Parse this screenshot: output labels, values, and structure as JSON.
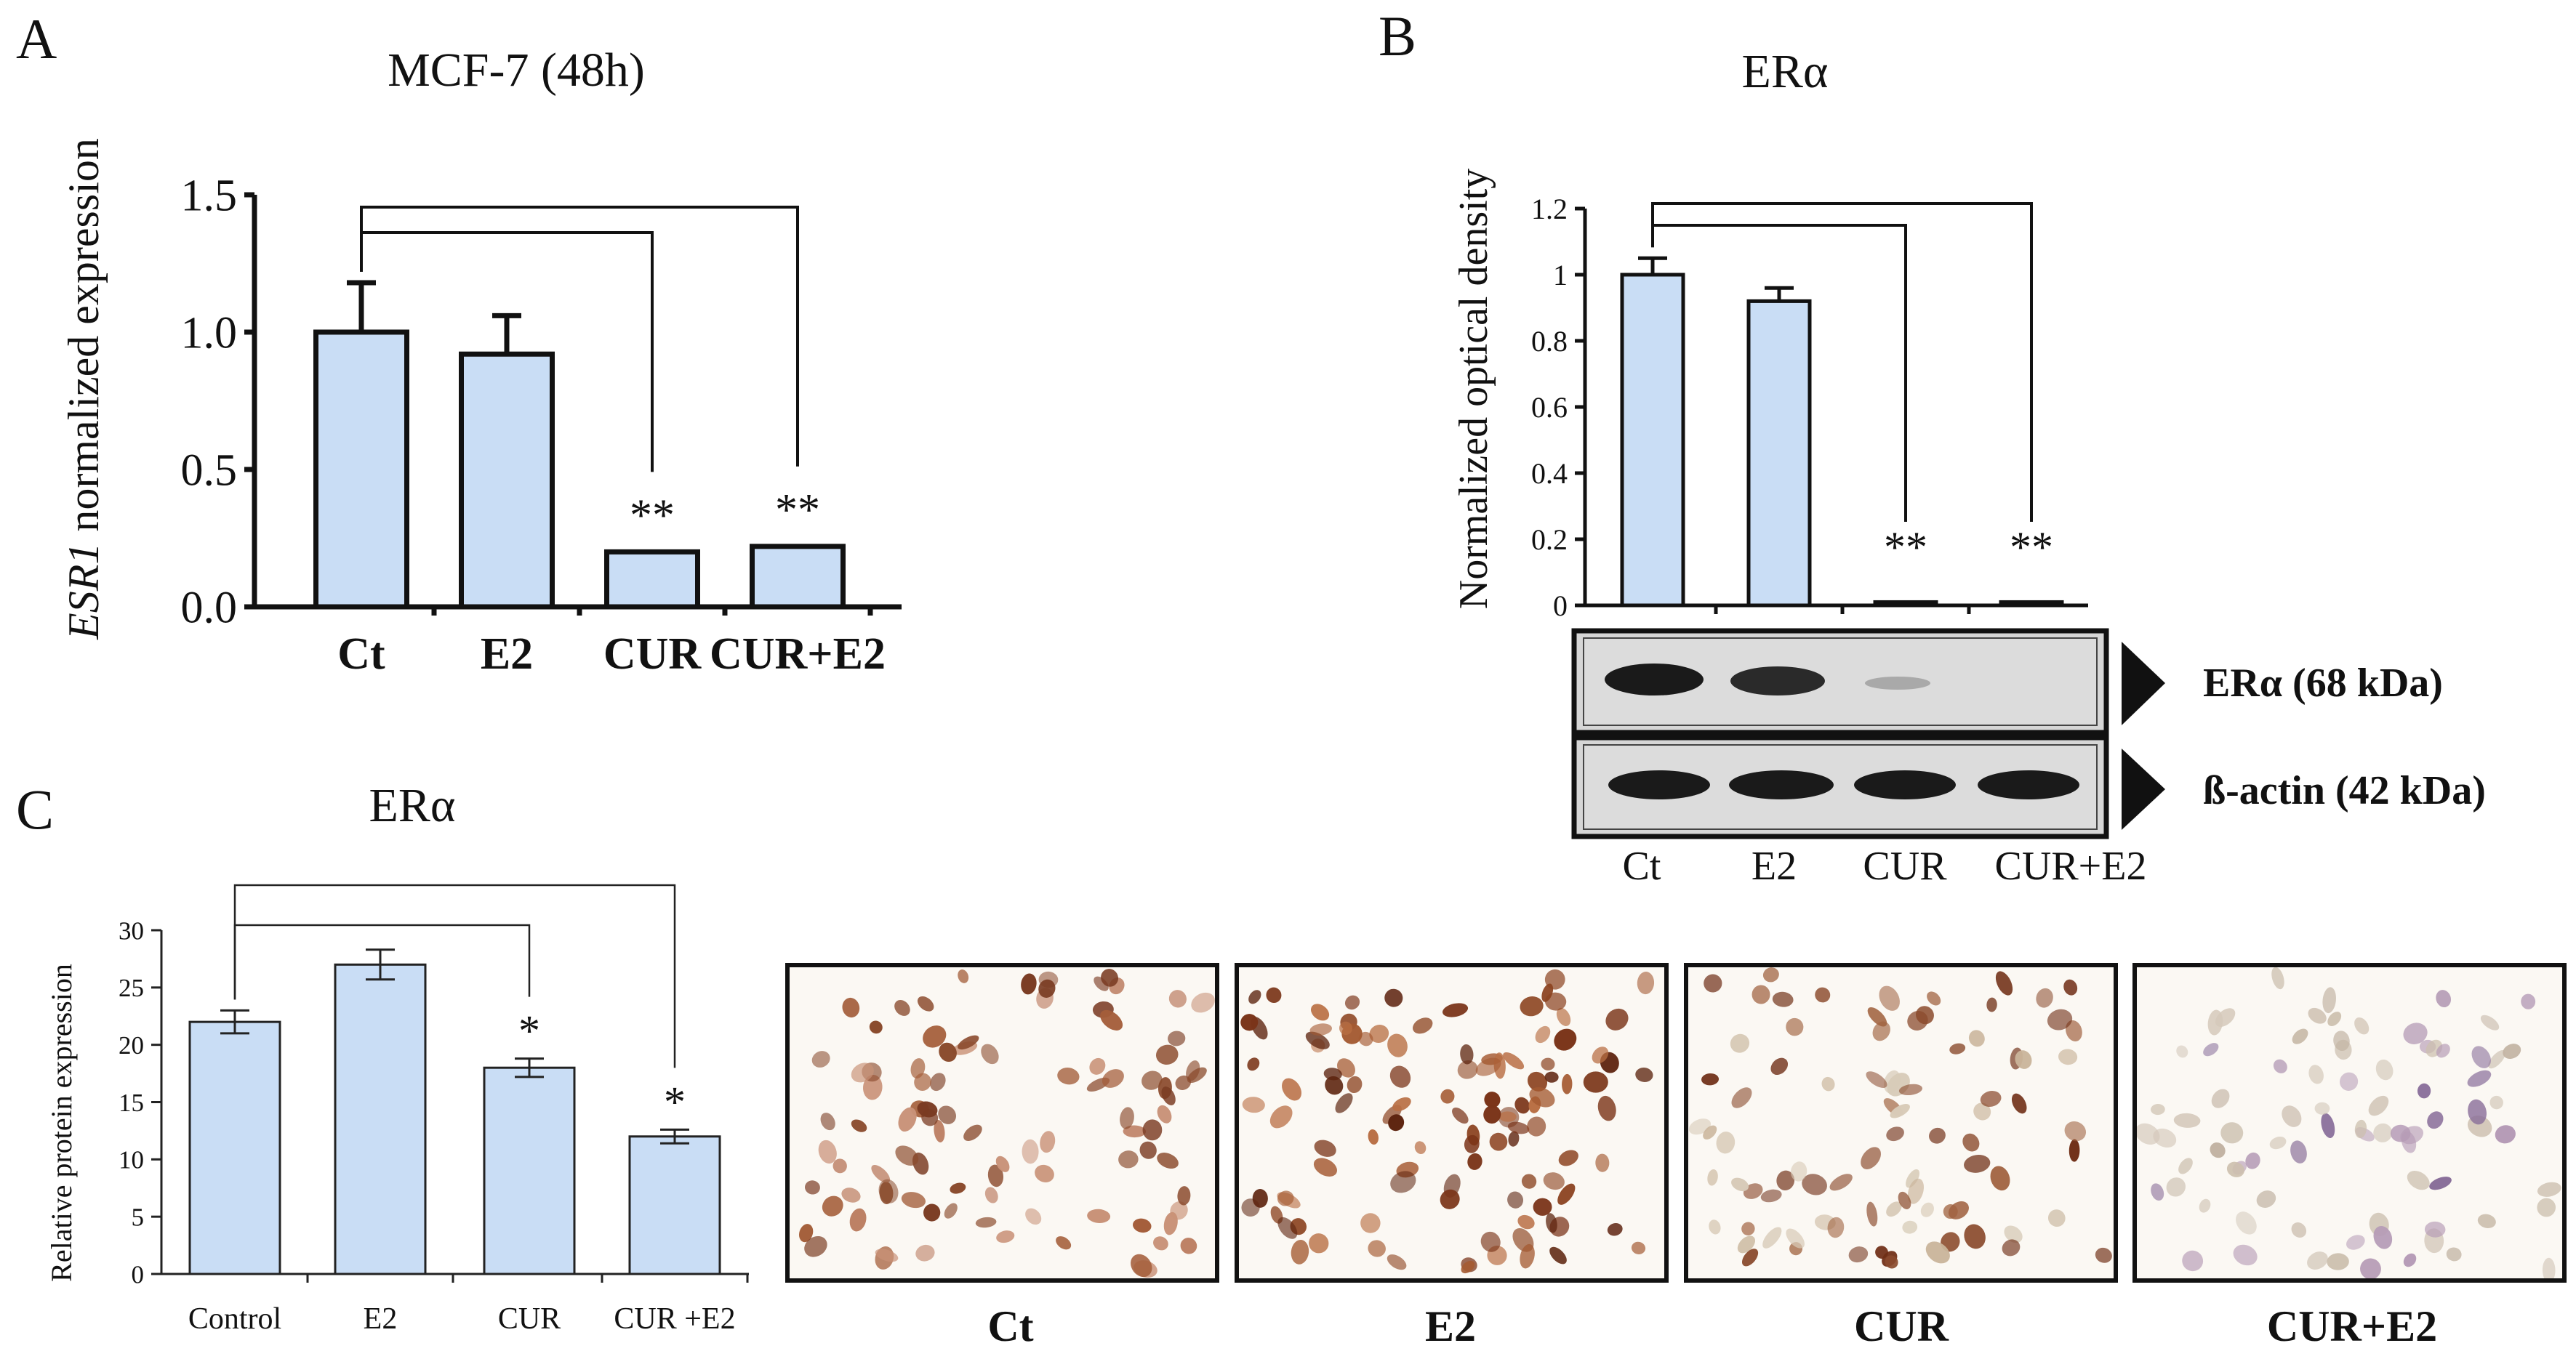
{
  "panels": {
    "a": {
      "letter": "A",
      "title": "MCF-7 (48h)",
      "ylabel_italic": "ESR1",
      "ylabel_rest": " normalized expression"
    },
    "b": {
      "letter": "B",
      "title": "ERα",
      "ylabel": "Normalized optical density",
      "blot": {
        "band1_label": "ERα (68 kDa)",
        "band2_label": "ß-actin (42 kDa)",
        "lanes": [
          "Ct",
          "E2",
          "CUR",
          "CUR+E2"
        ]
      }
    },
    "c": {
      "letter": "C",
      "title": "ERα",
      "ylabel": "Relative protein expression",
      "images": [
        "Ct",
        "E2",
        "CUR",
        "CUR+E2"
      ]
    }
  },
  "colors": {
    "bar_fill": "#c9ddf5",
    "bar_stroke": "#111111"
  },
  "chart_data": [
    {
      "id": "A",
      "type": "bar",
      "title": "MCF-7 (48h)",
      "xlabel": "",
      "ylabel": "ESR1 normalized expression",
      "categories": [
        "Ct",
        "E2",
        "CUR",
        "CUR+E2"
      ],
      "values": [
        1.0,
        0.92,
        0.2,
        0.22
      ],
      "errors": [
        0.18,
        0.14,
        0.0,
        0.0
      ],
      "significance": [
        "",
        "",
        "**",
        "**"
      ],
      "comparisons": [
        [
          "Ct",
          "CUR"
        ],
        [
          "Ct",
          "CUR+E2"
        ]
      ],
      "ylim": [
        0,
        1.5
      ],
      "yticks": [
        "0.0",
        "0.5",
        "1.0",
        "1.5"
      ],
      "grid": false
    },
    {
      "id": "B",
      "type": "bar",
      "title": "ERα",
      "xlabel": "",
      "ylabel": "Normalized optical density",
      "categories": [
        "Ct",
        "E2",
        "CUR",
        "CUR+E2"
      ],
      "values": [
        1.0,
        0.92,
        0.01,
        0.01
      ],
      "errors": [
        0.05,
        0.04,
        0.0,
        0.0
      ],
      "significance": [
        "",
        "",
        "**",
        "**"
      ],
      "comparisons": [
        [
          "Ct",
          "CUR"
        ],
        [
          "Ct",
          "CUR+E2"
        ]
      ],
      "ylim": [
        0,
        1.2
      ],
      "yticks": [
        "0",
        "0.2",
        "0.4",
        "0.6",
        "0.8",
        "1",
        "1.2"
      ],
      "grid": false
    },
    {
      "id": "C",
      "type": "bar",
      "title": "ERα",
      "xlabel": "",
      "ylabel": "Relative protein expression",
      "categories": [
        "Control",
        "E2",
        "CUR",
        "CUR +E2"
      ],
      "values": [
        22,
        27,
        18,
        12
      ],
      "errors": [
        1,
        1.3,
        0.8,
        0.6
      ],
      "significance": [
        "",
        "",
        "*",
        "*"
      ],
      "comparisons": [
        [
          "Control",
          "CUR"
        ],
        [
          "Control",
          "CUR +E2"
        ]
      ],
      "ylim": [
        0,
        30
      ],
      "yticks": [
        "0",
        "5",
        "10",
        "15",
        "20",
        "25",
        "30"
      ],
      "grid": false
    }
  ]
}
